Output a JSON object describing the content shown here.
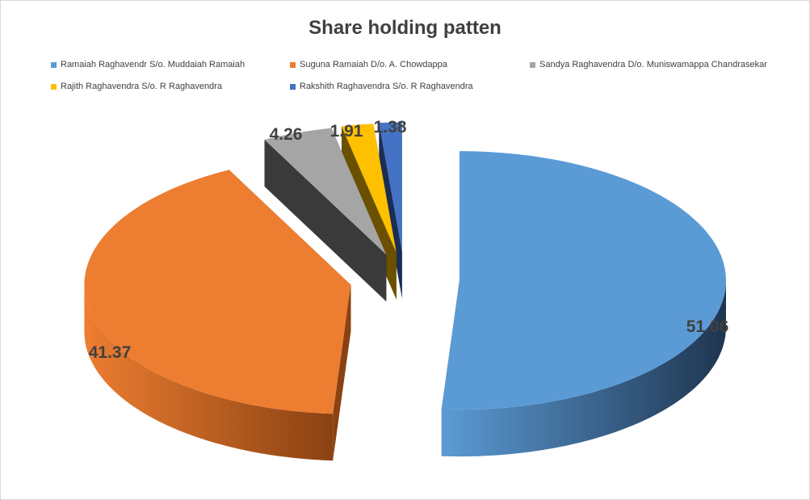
{
  "chart_data": {
    "type": "pie",
    "title": "Share holding patten",
    "legend_position": "top",
    "slices": [
      {
        "name": "Ramaiah Raghavendr S/o. Muddaiah Ramaiah",
        "value": 51.06,
        "label": "51.06",
        "color": "#5b9bd5",
        "side_dark": "#1f3550"
      },
      {
        "name": "Suguna Ramaiah D/o. A. Chowdappa",
        "value": 41.37,
        "label": "41.37",
        "color": "#ed7d31",
        "side_dark": "#8a4212"
      },
      {
        "name": "Sandya Raghavendra D/o. Muniswamappa Chandrasekar",
        "value": 4.26,
        "label": "4.26",
        "color": "#a5a5a5",
        "side_dark": "#3a3a3a"
      },
      {
        "name": "Rajith Raghavendra S/o. R Raghavendra",
        "value": 1.91,
        "label": "1.91",
        "color": "#ffc000",
        "side_dark": "#6b5000"
      },
      {
        "name": "Rakshith Raghavendra S/o. R Raghavendra",
        "value": 1.38,
        "label": "1.38",
        "color": "#4472c4",
        "side_dark": "#1a2d55"
      }
    ]
  }
}
